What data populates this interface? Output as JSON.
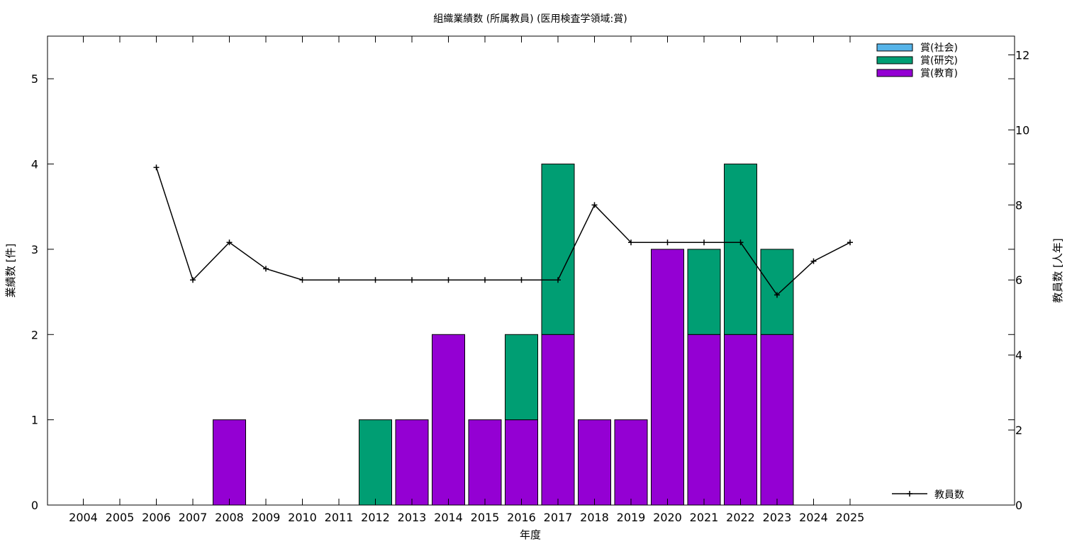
{
  "chart_data": {
    "type": "bar",
    "stacked": true,
    "title": "組織業績数 (所属教員) (医用検査学領域:賞)",
    "xlabel": "年度",
    "ylabel": "業績数 [件]",
    "y2label": "教員数 [人年]",
    "ylim": [
      0,
      5.5
    ],
    "y2lim": [
      0,
      12.5
    ],
    "yticks": [
      "0",
      "1",
      "2",
      "3",
      "4",
      "5"
    ],
    "y2ticks": [
      "0",
      "2",
      "4",
      "6",
      "8",
      "10",
      "12"
    ],
    "categories": [
      "2004",
      "2005",
      "2006",
      "2007",
      "2008",
      "2009",
      "2010",
      "2011",
      "2012",
      "2013",
      "2014",
      "2015",
      "2016",
      "2017",
      "2018",
      "2019",
      "2020",
      "2021",
      "2022",
      "2023",
      "2024",
      "2025"
    ],
    "series": [
      {
        "name": "賞(教育)",
        "color": "#9400d3",
        "values": [
          0,
          0,
          0,
          0,
          1,
          0,
          0,
          0,
          0,
          1,
          2,
          1,
          1,
          2,
          1,
          1,
          3,
          2,
          2,
          2,
          0,
          0
        ]
      },
      {
        "name": "賞(研究)",
        "color": "#009e73",
        "values": [
          0,
          0,
          0,
          0,
          0,
          0,
          0,
          0,
          1,
          0,
          0,
          0,
          1,
          2,
          0,
          0,
          0,
          1,
          2,
          1,
          0,
          0
        ]
      },
      {
        "name": "賞(社会)",
        "color": "#56b4e9",
        "values": [
          0,
          0,
          0,
          0,
          0,
          0,
          0,
          0,
          0,
          0,
          0,
          0,
          0,
          0,
          0,
          0,
          0,
          0,
          0,
          0,
          0,
          0
        ]
      }
    ],
    "line_series": {
      "name": "教員数",
      "axis": "y2",
      "color": "#000000",
      "values": [
        null,
        null,
        9,
        6,
        7,
        6.3,
        6,
        6,
        6,
        6,
        6,
        6,
        6,
        6,
        8,
        7,
        7,
        7,
        7,
        5.6,
        6.5,
        7
      ]
    },
    "legend_placement": "top-right",
    "line_legend_placement": "bottom-right",
    "grid": false
  }
}
